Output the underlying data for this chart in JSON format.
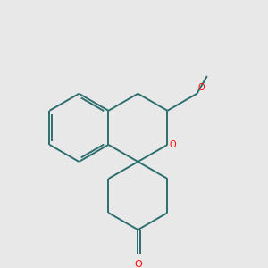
{
  "bg_color": "#e8e8e8",
  "line_color": "#2d6e6e",
  "heteroatom_color": "#ff0000",
  "lw": 1.4,
  "figsize": [
    3.0,
    3.0
  ],
  "dpi": 100,
  "xlim": [
    0,
    10
  ],
  "ylim": [
    0,
    10
  ],
  "spiro_x": 4.55,
  "spiro_y": 5.05
}
